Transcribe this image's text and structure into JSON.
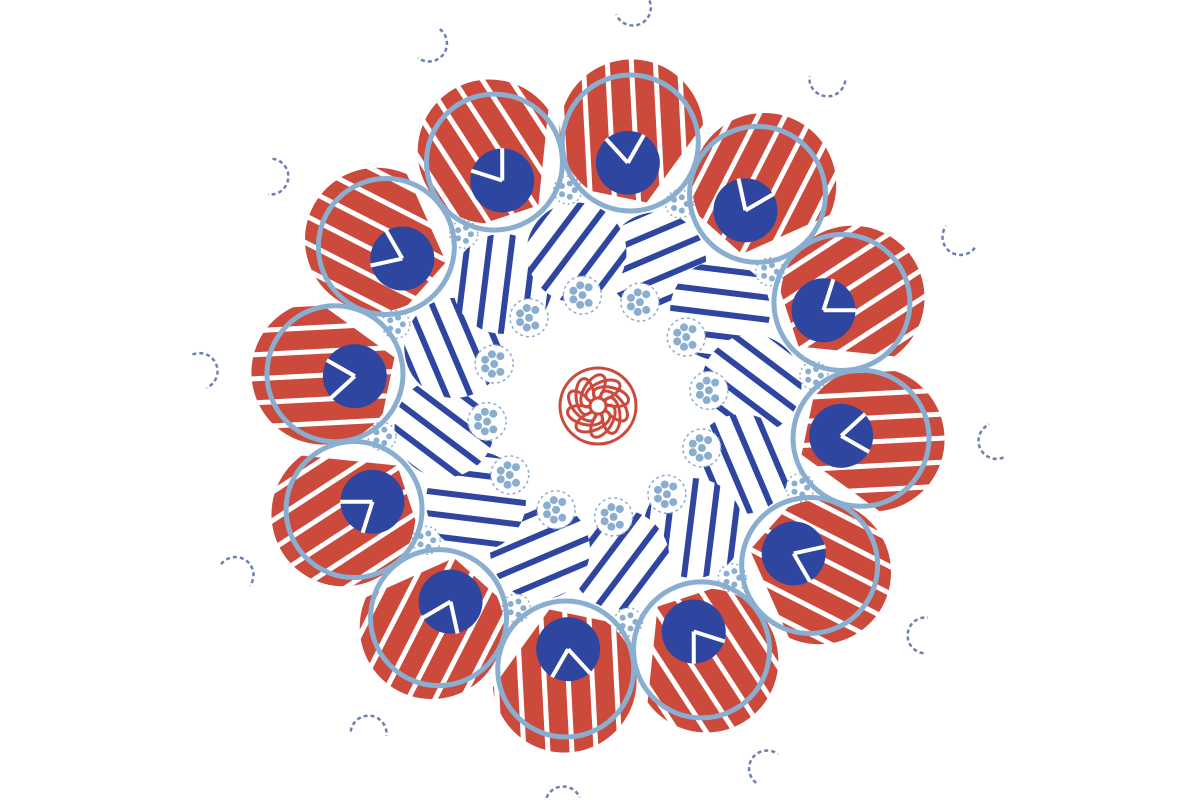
{
  "colors": {
    "background": "#ffffff",
    "red": "#cc4a3c",
    "navy": "#2f46a0",
    "light_blue": "#8aaed0",
    "white": "#ffffff"
  },
  "pattern": {
    "petals": 12,
    "large_red_striped_discs": 12,
    "outline_rings": 12,
    "navy_wedge_discs": 12,
    "navy_striped_discs": 12,
    "dotted_medallions": 12,
    "dashed_arc_ornaments": 12,
    "center_ornament": "red-spiral-rosette"
  }
}
